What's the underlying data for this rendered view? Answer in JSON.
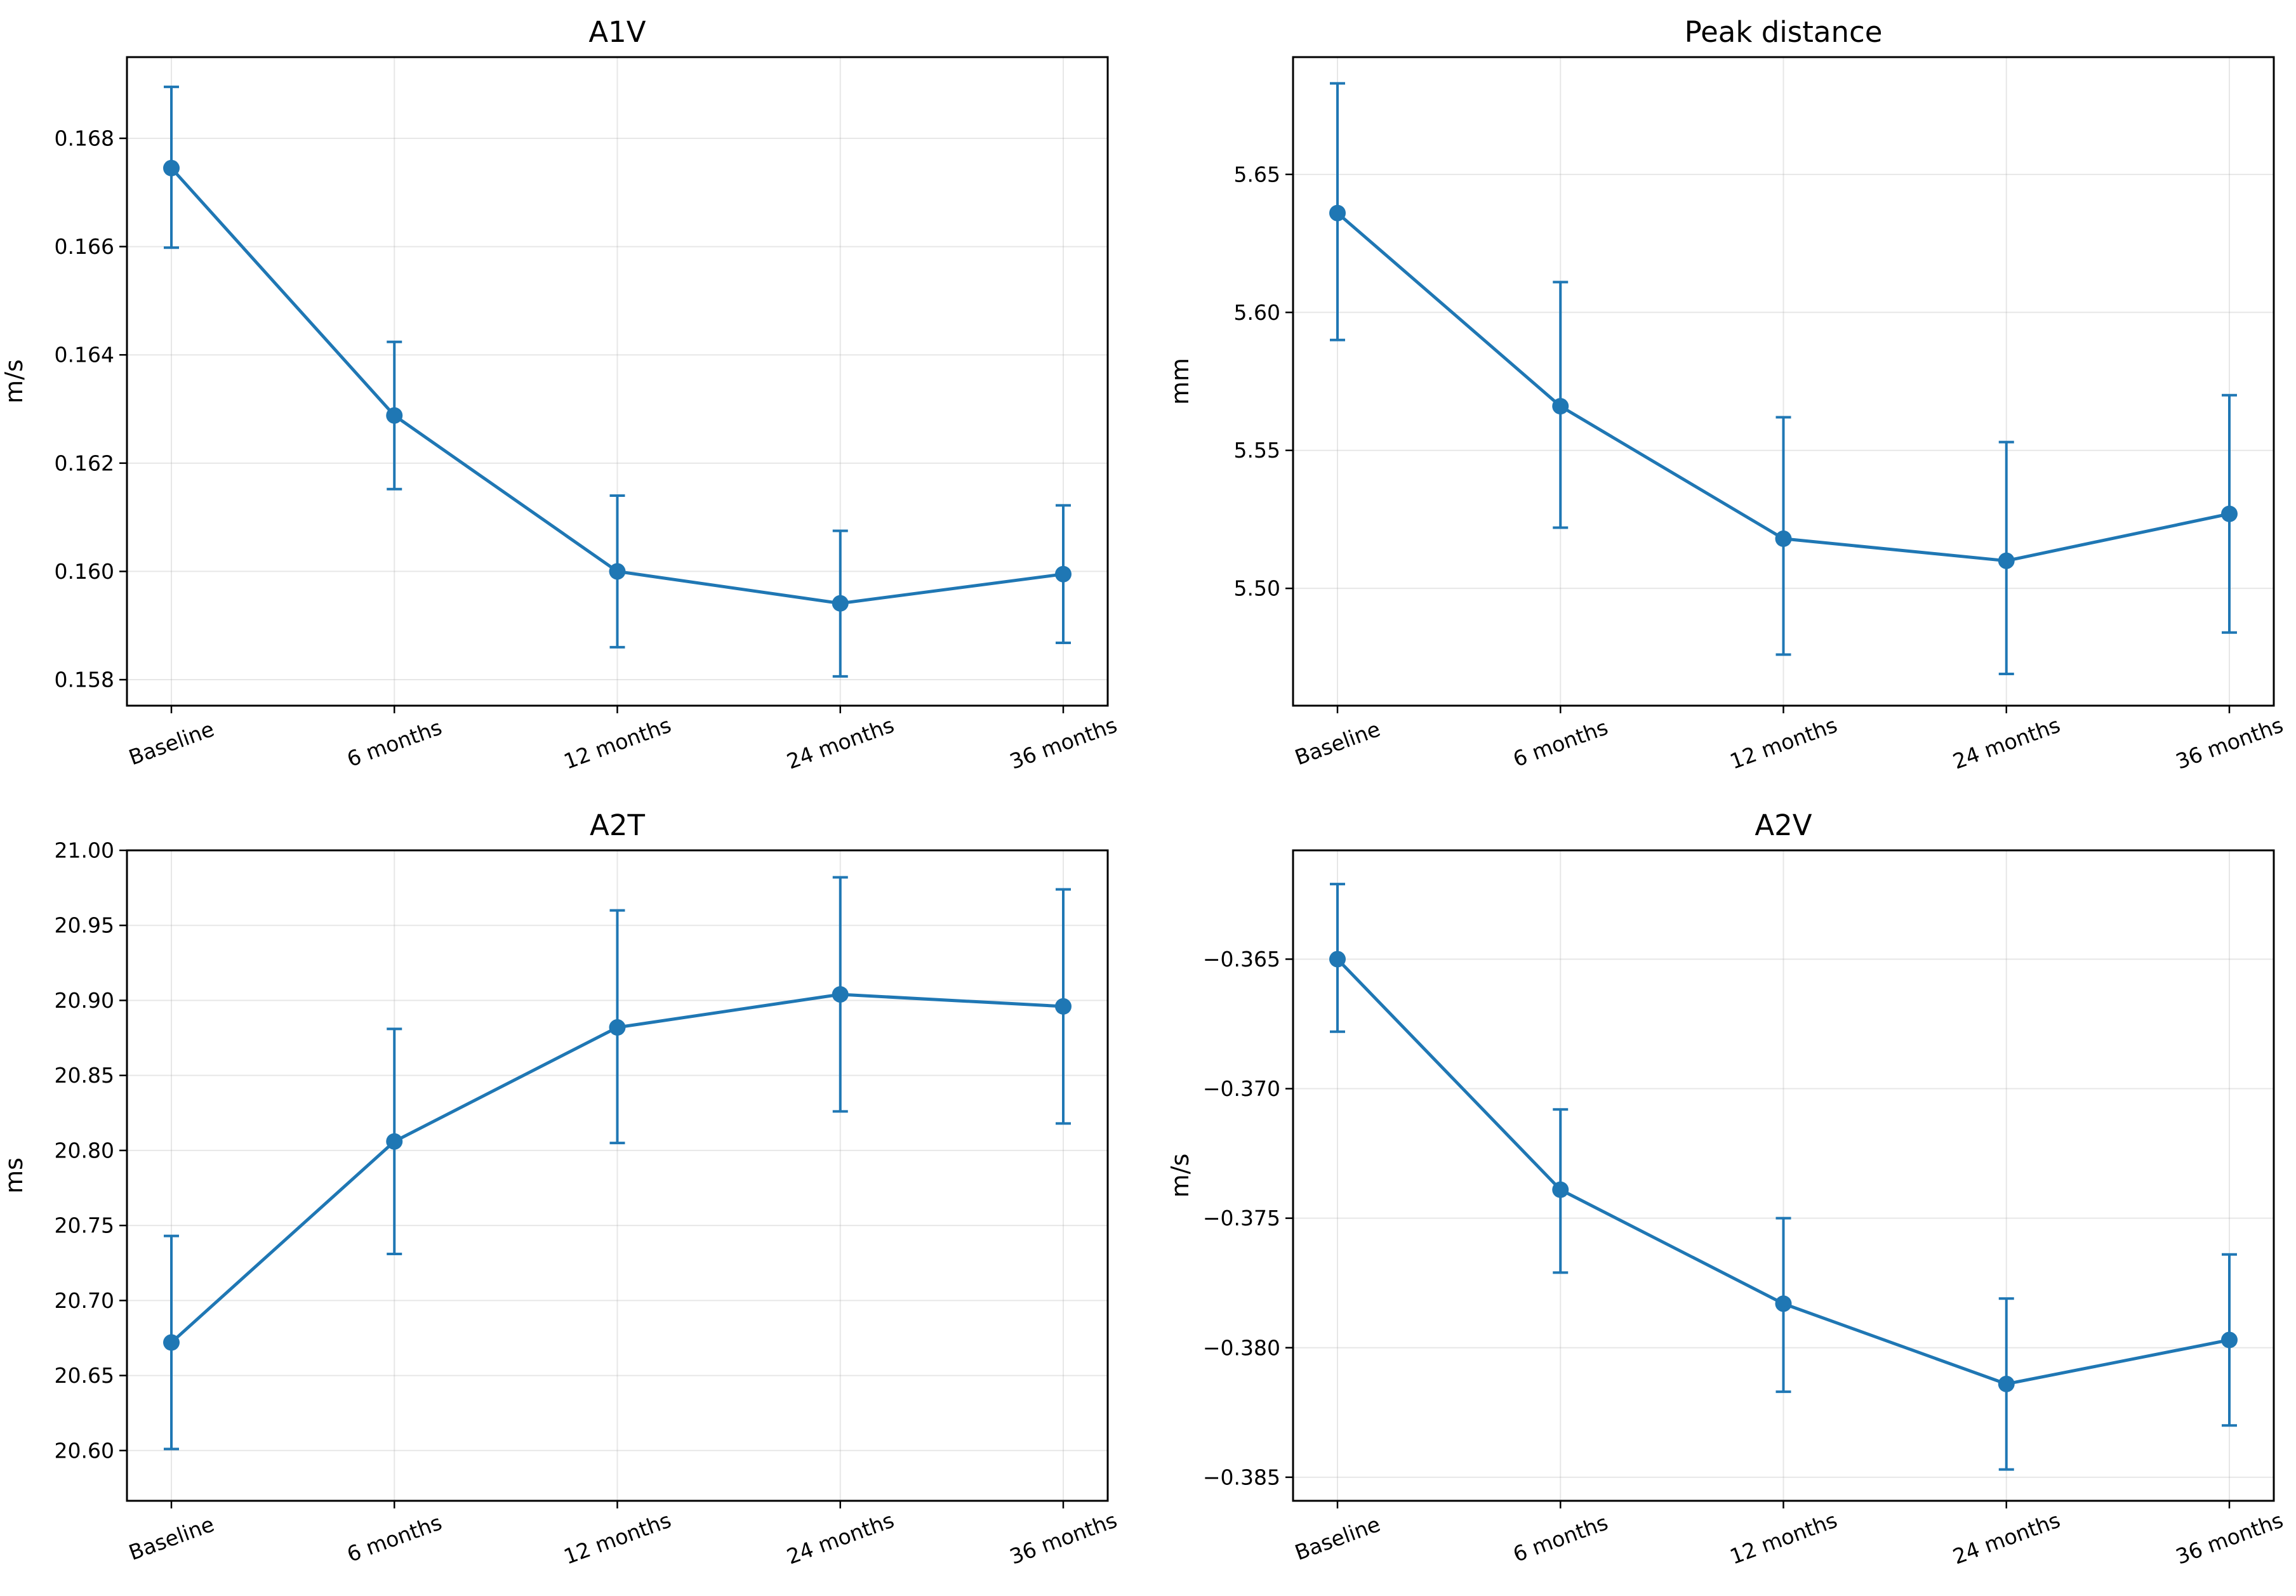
{
  "chart_data": [
    {
      "type": "line",
      "title": "A1V",
      "xlabel": "",
      "ylabel": "m/s",
      "categories": [
        "Baseline",
        "6 months",
        "12 months",
        "24 months",
        "36 months"
      ],
      "series": [
        {
          "values": [
            0.16745,
            0.16288,
            0.16,
            0.15941,
            0.15995
          ],
          "err_low": [
            0.16598,
            0.16152,
            0.1586,
            0.15806,
            0.15868
          ],
          "err_high": [
            0.16895,
            0.16424,
            0.1614,
            0.16075,
            0.16122
          ]
        }
      ],
      "yticks": [
        "0.158",
        "0.160",
        "0.162",
        "0.164",
        "0.166",
        "0.168"
      ],
      "ylim": [
        0.15752,
        0.1695
      ],
      "grid": true,
      "color": "#1f77b4"
    },
    {
      "type": "line",
      "title": "Peak distance",
      "xlabel": "",
      "ylabel": "mm",
      "categories": [
        "Baseline",
        "6 months",
        "12 months",
        "24 months",
        "36 months"
      ],
      "series": [
        {
          "values": [
            5.636,
            5.566,
            5.518,
            5.51,
            5.527
          ],
          "err_low": [
            5.59,
            5.522,
            5.476,
            5.469,
            5.484
          ],
          "err_high": [
            5.683,
            5.611,
            5.562,
            5.553,
            5.57
          ]
        }
      ],
      "yticks": [
        "5.50",
        "5.55",
        "5.60",
        "5.65"
      ],
      "ylim": [
        5.4575,
        5.6925
      ],
      "grid": true,
      "color": "#1f77b4"
    },
    {
      "type": "line",
      "title": "A2T",
      "xlabel": "",
      "ylabel": "ms",
      "categories": [
        "Baseline",
        "6 months",
        "12 months",
        "24 months",
        "36 months"
      ],
      "series": [
        {
          "values": [
            20.672,
            20.806,
            20.882,
            20.904,
            20.896
          ],
          "err_low": [
            20.601,
            20.731,
            20.805,
            20.826,
            20.818
          ],
          "err_high": [
            20.743,
            20.881,
            20.96,
            20.982,
            20.974
          ]
        }
      ],
      "yticks": [
        "20.60",
        "20.65",
        "20.70",
        "20.75",
        "20.80",
        "20.85",
        "20.90",
        "20.95",
        "21.00"
      ],
      "ylim": [
        20.5665,
        21.0
      ],
      "grid": true,
      "color": "#1f77b4"
    },
    {
      "type": "line",
      "title": "A2V",
      "xlabel": "",
      "ylabel": "m/s",
      "categories": [
        "Baseline",
        "6 months",
        "12 months",
        "24 months",
        "36 months"
      ],
      "series": [
        {
          "values": [
            -0.365,
            -0.3739,
            -0.3783,
            -0.3814,
            -0.3797
          ],
          "err_low": [
            -0.3678,
            -0.3771,
            -0.3817,
            -0.3847,
            -0.383
          ],
          "err_high": [
            -0.3621,
            -0.3708,
            -0.375,
            -0.3781,
            -0.3764
          ]
        }
      ],
      "yticks": [
        "−0.385",
        "−0.380",
        "−0.375",
        "−0.370",
        "−0.365"
      ],
      "ylim": [
        -0.38591,
        -0.3608
      ],
      "grid": true,
      "color": "#1f77b4"
    }
  ]
}
